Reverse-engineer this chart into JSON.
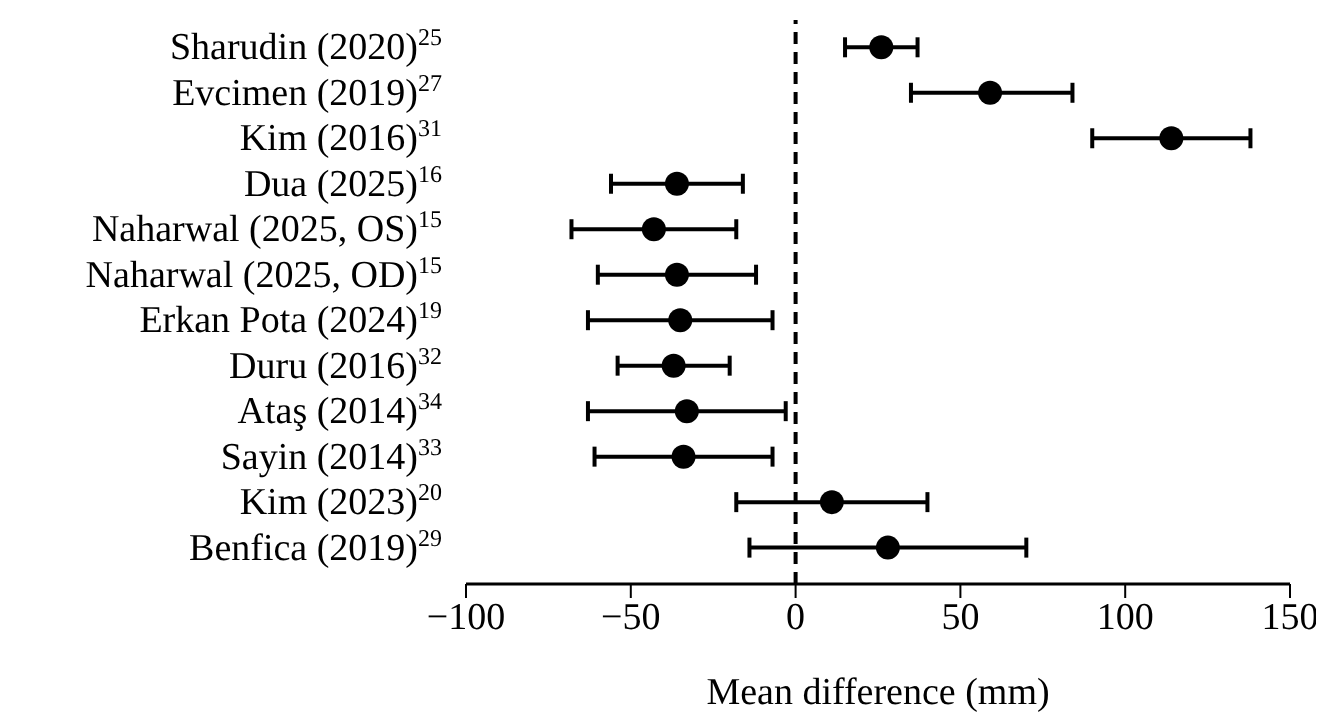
{
  "chart_data": {
    "type": "scatter",
    "orientation": "horizontal",
    "xlabel": "Mean difference (mm)",
    "categories": [
      "Sharudin (2020)$^{25}$",
      "Evcimen (2019)$^{27}$",
      "Kim (2016)$^{31}$",
      "Dua (2025)$^{16}$",
      "Naharwal (2025, OS)$^{15}$",
      "Naharwal (2025, OD)$^{15}$",
      "Erkan Pota (2024)$^{19}$",
      "Duru (2016)$^{32}$",
      "Ataş (2014)$^{34}$",
      "Sayin (2014)$^{33}$",
      "Kim (2023)$^{20}$",
      "Benfica (2019)$^{29}$"
    ],
    "values": [
      26,
      59,
      114,
      -36,
      -43,
      -36,
      -35,
      -37,
      -33,
      -34,
      11,
      28
    ],
    "errors": [
      [
        15,
        37
      ],
      [
        35,
        84
      ],
      [
        90,
        138
      ],
      [
        -56,
        -16
      ],
      [
        -68,
        -18
      ],
      [
        -60,
        -12
      ],
      [
        -63,
        -7
      ],
      [
        -54,
        -20
      ],
      [
        -63,
        -3
      ],
      [
        -61,
        -7
      ],
      [
        -18,
        40
      ],
      [
        -14,
        70
      ]
    ],
    "color": "#000000",
    "marker": "circle",
    "xlim": [
      -100,
      150
    ],
    "xticks": [
      {
        "value": -100,
        "label": "−100"
      },
      {
        "value": -50,
        "label": "−50"
      },
      0,
      50,
      100,
      150
    ],
    "ref_lines": [
      {
        "axis": "x",
        "value": 0,
        "line_style": "dashed",
        "color": "#000000"
      }
    ]
  }
}
